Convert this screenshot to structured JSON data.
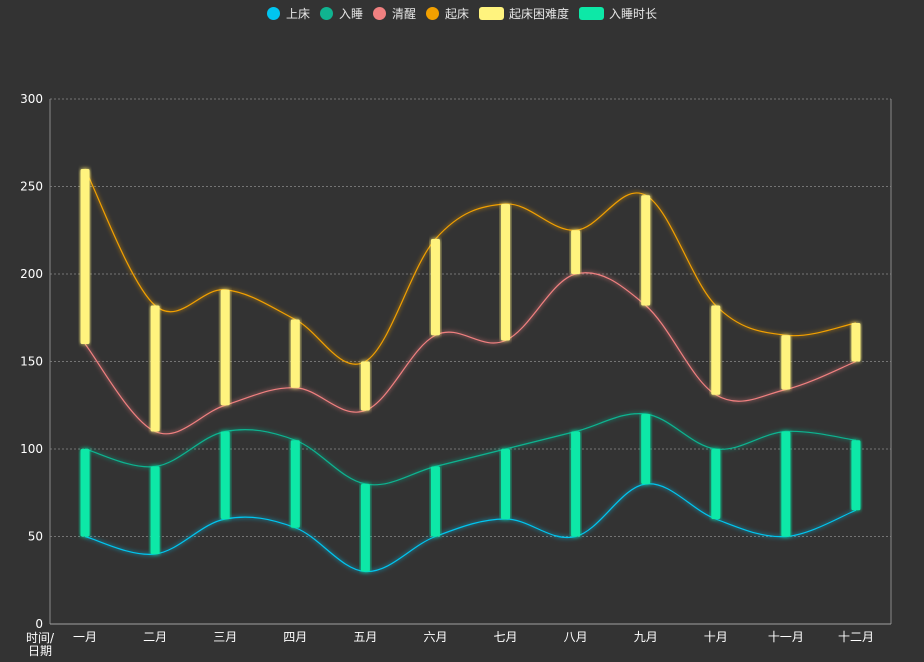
{
  "legend": [
    {
      "name": "上床",
      "shape": "dot",
      "color": "#00c5f0"
    },
    {
      "name": "入睡",
      "shape": "dot",
      "color": "#10b390"
    },
    {
      "name": "清醒",
      "shape": "dot",
      "color": "#f08080"
    },
    {
      "name": "起床",
      "shape": "dot",
      "color": "#f2a000"
    },
    {
      "name": "起床困难度",
      "shape": "rect",
      "color": "#fff37e"
    },
    {
      "name": "入睡时长",
      "shape": "rect",
      "color": "#0de8a7"
    }
  ],
  "chart_data": {
    "type": "line",
    "categories": [
      "一月",
      "二月",
      "三月",
      "四月",
      "五月",
      "六月",
      "七月",
      "八月",
      "九月",
      "十月",
      "十一月",
      "十二月"
    ],
    "xlabel": "时间/日期",
    "ylim": [
      0,
      300
    ],
    "yticks": [
      0,
      50,
      100,
      150,
      200,
      250,
      300
    ],
    "grid": true,
    "legend_position": "top-center",
    "series": [
      {
        "name": "上床",
        "color": "#00c5f0",
        "values": [
          50,
          40,
          60,
          55,
          30,
          50,
          60,
          50,
          80,
          60,
          50,
          65
        ]
      },
      {
        "name": "入睡",
        "color": "#10b390",
        "values": [
          100,
          90,
          110,
          105,
          80,
          90,
          100,
          110,
          120,
          100,
          110,
          105
        ]
      },
      {
        "name": "清醒",
        "color": "#f08080",
        "values": [
          160,
          110,
          125,
          135,
          122,
          165,
          162,
          200,
          182,
          131,
          134,
          150
        ]
      },
      {
        "name": "起床",
        "color": "#f2a000",
        "values": [
          260,
          182,
          191,
          174,
          150,
          220,
          240,
          225,
          245,
          182,
          165,
          172
        ]
      }
    ],
    "range_bars": [
      {
        "name": "入睡时长",
        "color": "#0de8a7",
        "from_series": "上床",
        "to_series": "入睡"
      },
      {
        "name": "起床困难度",
        "color": "#fff37e",
        "from_series": "清醒",
        "to_series": "起床"
      }
    ]
  }
}
